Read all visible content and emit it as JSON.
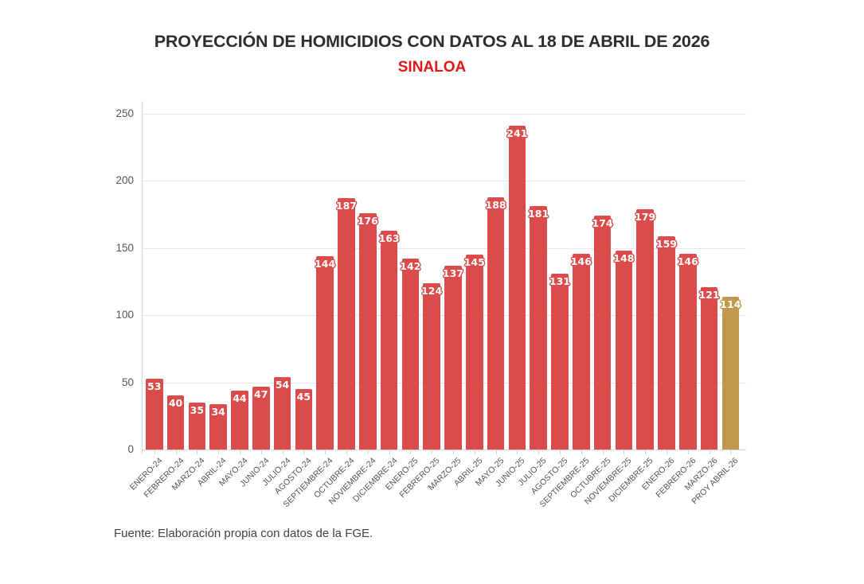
{
  "title": "PROYECCIÓN DE HOMICIDIOS CON DATOS AL 18 DE ABRIL DE 2026",
  "subtitle": "SINALOA",
  "source": "Fuente: Elaboración propia con datos de la FGE.",
  "colors": {
    "bar": "#dc4b4b",
    "projection_bar": "#c0984e",
    "bar_label_text": "#ffffff",
    "title_text": "#2d2d2d",
    "subtitle_text": "#e01a1a",
    "axis_text": "#565656",
    "gridline": "#e9e9e9",
    "axis_line": "#d4d4d4",
    "source_text": "#424242"
  },
  "chart_data": {
    "type": "bar",
    "title": "PROYECCIÓN DE HOMICIDIOS CON DATOS AL 18 DE ABRIL DE 2026",
    "subtitle": "SINALOA",
    "xlabel": "",
    "ylabel": "",
    "ylim": [
      0,
      250
    ],
    "yticks": [
      0,
      50,
      100,
      150,
      200,
      250
    ],
    "grid": true,
    "legend": "none",
    "last_bar_is_projection": true,
    "categories": [
      "ENERO-24",
      "FEBRERO-24",
      "MARZO-24",
      "ABRIL-24",
      "MAYO-24",
      "JUNIO-24",
      "JULIO-24",
      "AGOSTO-24",
      "SEPTIEMBRE-24",
      "OCTUBRE-24",
      "NOVIEMBRE-24",
      "DICIEMBRE-24",
      "ENERO-25",
      "FEBRERO-25",
      "MARZO-25",
      "ABRIL-25",
      "MAYO-25",
      "JUNIO-25",
      "JULIO-25",
      "AGOSTO-25",
      "SEPTIEMBRE-25",
      "OCTUBRE-25",
      "NOVIEMBRE-25",
      "DICIEMBRE-25",
      "ENERO-26",
      "FEBRERO-26",
      "MARZO-26",
      "PROY ABRIL-26"
    ],
    "values": [
      53,
      40,
      35,
      34,
      44,
      47,
      54,
      45,
      144,
      187,
      176,
      163,
      142,
      124,
      137,
      145,
      188,
      241,
      181,
      131,
      146,
      174,
      148,
      179,
      159,
      146,
      121,
      114
    ]
  }
}
